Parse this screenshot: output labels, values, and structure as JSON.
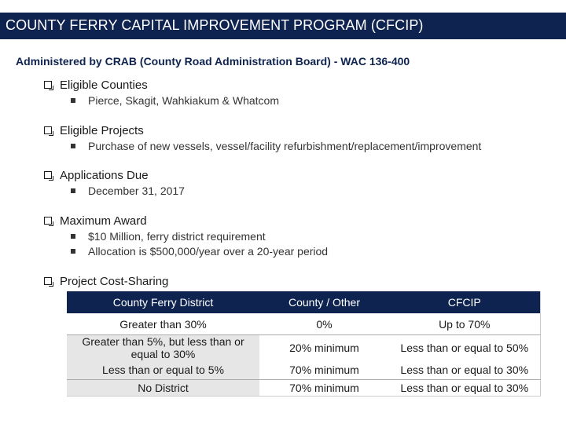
{
  "title": "COUNTY FERRY CAPITAL IMPROVEMENT PROGRAM (CFCIP)",
  "subtitle": "Administered by CRAB (County Road Administration Board) - WAC 136-400",
  "sections": [
    {
      "heading": "Eligible Counties",
      "items": [
        "Pierce, Skagit, Wahkiakum & Whatcom"
      ]
    },
    {
      "heading": "Eligible Projects",
      "items": [
        "Purchase of new vessels, vessel/facility refurbishment/replacement/improvement"
      ]
    },
    {
      "heading": "Applications Due",
      "items": [
        "December 31, 2017"
      ]
    },
    {
      "heading": "Maximum Award",
      "items": [
        "$10 Million, ferry district requirement",
        "Allocation is $500,000/year over a 20-year period"
      ]
    },
    {
      "heading": "Project Cost-Sharing",
      "items": []
    }
  ],
  "table": {
    "headers": [
      "County Ferry District",
      "County / Other",
      "CFCIP"
    ],
    "rows": [
      [
        "Greater than 30%",
        "0%",
        "Up to 70%"
      ],
      [
        "Greater than 5%, but less than or equal to 30%",
        "20% minimum",
        "Less than or equal to 50%"
      ],
      [
        "Less than or equal to 5%",
        "70% minimum",
        "Less than or equal to 30%"
      ],
      [
        "No District",
        "70% minimum",
        "Less than or equal to 30%"
      ]
    ]
  },
  "colors": {
    "header_navy": "#0f2350",
    "row_gray": "#e6e6e6"
  }
}
